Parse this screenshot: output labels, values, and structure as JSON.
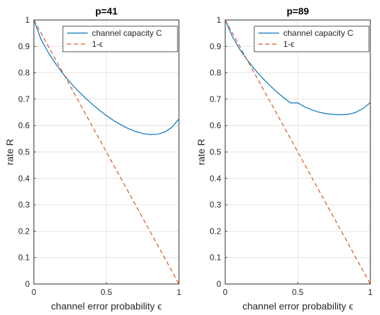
{
  "chart_data": [
    {
      "type": "line",
      "title": "p=41",
      "xlabel": "channel error probability ϵ",
      "ylabel": "rate R",
      "xlim": [
        0,
        1
      ],
      "ylim": [
        0,
        1
      ],
      "x_ticks": [
        "0",
        "0.5",
        "1"
      ],
      "y_ticks": [
        "0",
        "0.1",
        "0.2",
        "0.3",
        "0.4",
        "0.5",
        "0.6",
        "0.7",
        "0.8",
        "0.9",
        "1"
      ],
      "grid": true,
      "legend_position": "top-right",
      "series": [
        {
          "name": "channel capacity C",
          "color": "#0072bd",
          "dash": "solid",
          "x": [
            0,
            0.05,
            0.1,
            0.15,
            0.2,
            0.25,
            0.3,
            0.35,
            0.4,
            0.45,
            0.5,
            0.55,
            0.6,
            0.65,
            0.7,
            0.75,
            0.8,
            0.85,
            0.9,
            0.95,
            1.0
          ],
          "y": [
            1.0,
            0.926,
            0.876,
            0.834,
            0.797,
            0.764,
            0.734,
            0.707,
            0.682,
            0.659,
            0.638,
            0.619,
            0.603,
            0.589,
            0.578,
            0.57,
            0.566,
            0.567,
            0.575,
            0.593,
            0.625
          ]
        },
        {
          "name": "1-ϵ",
          "color": "#d95319",
          "dash": "dashed",
          "x": [
            0,
            1
          ],
          "y": [
            1,
            0
          ]
        }
      ]
    },
    {
      "type": "line",
      "title": "p=89",
      "xlabel": "channel error probability ϵ",
      "ylabel": "rate R",
      "xlim": [
        0,
        1
      ],
      "ylim": [
        0,
        1
      ],
      "x_ticks": [
        "0",
        "0.5",
        "1"
      ],
      "y_ticks": [
        "0",
        "0.1",
        "0.2",
        "0.3",
        "0.4",
        "0.5",
        "0.6",
        "0.7",
        "0.8",
        "0.9",
        "1"
      ],
      "grid": true,
      "legend_position": "top-right",
      "series": [
        {
          "name": "channel capacity C",
          "color": "#0072bd",
          "dash": "solid",
          "x": [
            0,
            0.05,
            0.1,
            0.15,
            0.2,
            0.25,
            0.3,
            0.35,
            0.4,
            0.45,
            0.5,
            0.55,
            0.6,
            0.65,
            0.7,
            0.75,
            0.8,
            0.85,
            0.9,
            0.95,
            1.0
          ],
          "y": [
            1.0,
            0.936,
            0.889,
            0.85,
            0.815,
            0.784,
            0.756,
            0.73,
            0.707,
            0.686,
            0.686,
            0.67,
            0.659,
            0.65,
            0.645,
            0.642,
            0.641,
            0.643,
            0.65,
            0.665,
            0.687
          ]
        },
        {
          "name": "1-ϵ",
          "color": "#d95319",
          "dash": "dashed",
          "x": [
            0,
            1
          ],
          "y": [
            1,
            0
          ]
        }
      ]
    }
  ]
}
